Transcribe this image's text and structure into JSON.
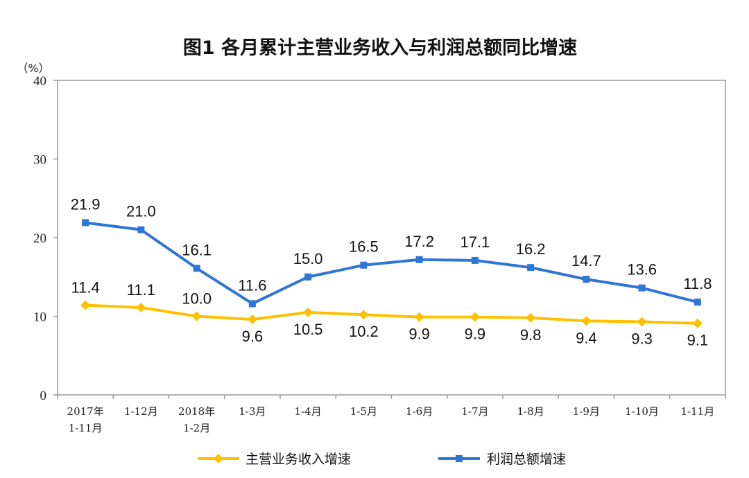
{
  "chart_data": {
    "type": "line",
    "title": "图1  各月累计主营业务收入与利润总额同比增速",
    "ylabel": "（%）",
    "xlabel": "",
    "ylim": [
      0,
      40
    ],
    "yticks": [
      "0",
      "10",
      "20",
      "30",
      "40"
    ],
    "grid": false,
    "legend_position": "bottom",
    "categories": [
      [
        "2017年",
        "1-11月"
      ],
      [
        "1-12月"
      ],
      [
        "2018年",
        "1-2月"
      ],
      [
        "1-3月"
      ],
      [
        "1-4月"
      ],
      [
        "1-5月"
      ],
      [
        "1-6月"
      ],
      [
        "1-7月"
      ],
      [
        "1-8月"
      ],
      [
        "1-9月"
      ],
      [
        "1-10月"
      ],
      [
        "1-11月"
      ]
    ],
    "series": [
      {
        "name": "主营业务收入增速",
        "color": "#FFC000",
        "marker": "diamond",
        "label_position": "mixed",
        "values": [
          11.4,
          11.1,
          10.0,
          9.6,
          10.5,
          10.2,
          9.9,
          9.9,
          9.8,
          9.4,
          9.3,
          9.1
        ],
        "labels": [
          "11.4",
          "11.1",
          "10.0",
          "9.6",
          "10.5",
          "10.2",
          "9.9",
          "9.9",
          "9.8",
          "9.4",
          "9.3",
          "9.1"
        ]
      },
      {
        "name": "利润总额增速",
        "color": "#2E75D6",
        "marker": "square",
        "label_position": "above",
        "values": [
          21.9,
          21.0,
          16.1,
          11.6,
          15.0,
          16.5,
          17.2,
          17.1,
          16.2,
          14.7,
          13.6,
          11.8
        ],
        "labels": [
          "21.9",
          "21.0",
          "16.1",
          "11.6",
          "15.0",
          "16.5",
          "17.2",
          "17.1",
          "16.2",
          "14.7",
          "13.6",
          "11.8"
        ]
      }
    ]
  }
}
